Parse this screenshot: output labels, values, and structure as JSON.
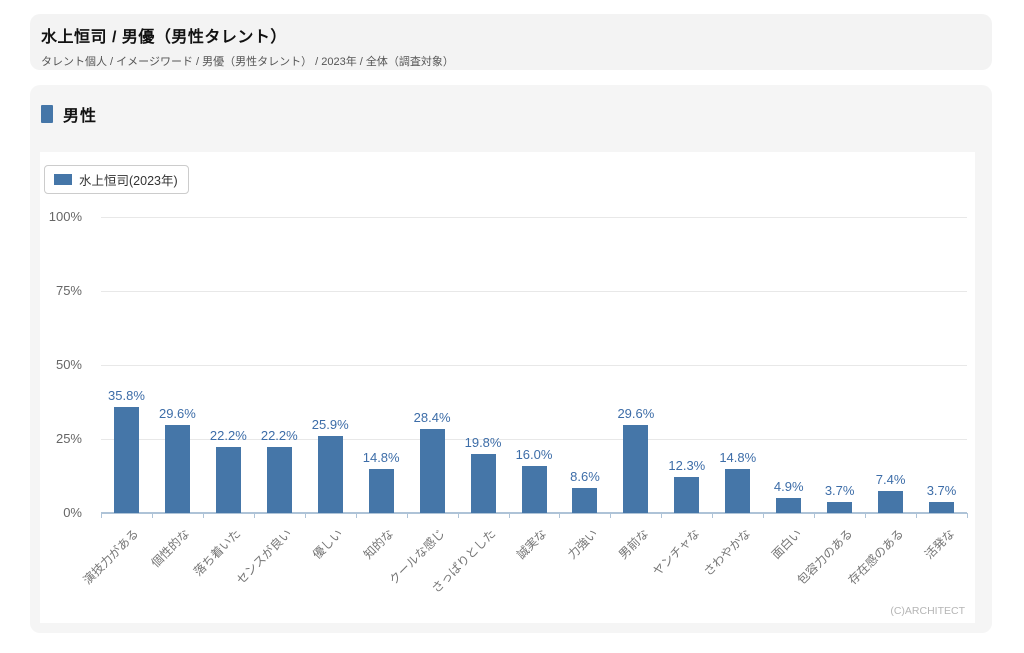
{
  "header": {
    "title": "水上恒司 / 男優（男性タレント）",
    "breadcrumb": "タレント個人 / イメージワード / 男優（男性タレント） / 2023年 / 全体（調査対象）"
  },
  "section": {
    "title": "男性"
  },
  "legend": {
    "label": "水上恒司(2023年)"
  },
  "footer": {
    "copyright": "(C)ARCHITECT"
  },
  "colors": {
    "bar": "#4576a8",
    "value_label": "#3d6da8",
    "axis_line": "#aec3d7",
    "gridline": "#e8e8e8",
    "section_marker": "#4576a8",
    "x_label_text": "#757575",
    "y_label_text": "#666666"
  },
  "chart_data": {
    "type": "bar",
    "title": "男性",
    "categories": [
      "演技力がある",
      "個性的な",
      "落ち着いた",
      "センスが良い",
      "優しい",
      "知的な",
      "クールな感じ",
      "さっぱりとした",
      "誠実な",
      "力強い",
      "男前な",
      "ヤンチャな",
      "さわやかな",
      "面白い",
      "包容力のある",
      "存在感のある",
      "活発な"
    ],
    "series": [
      {
        "name": "水上恒司(2023年)",
        "values": [
          35.8,
          29.6,
          22.2,
          22.2,
          25.9,
          14.8,
          28.4,
          19.8,
          16.0,
          8.6,
          29.6,
          12.3,
          14.8,
          4.9,
          3.7,
          7.4,
          3.7
        ],
        "value_labels": [
          "35.8%",
          "29.6%",
          "22.2%",
          "22.2%",
          "25.9%",
          "14.8%",
          "28.4%",
          "19.8%",
          "16.0%",
          "8.6%",
          "29.6%",
          "12.3%",
          "14.8%",
          "4.9%",
          "3.7%",
          "7.4%",
          "3.7%"
        ]
      }
    ],
    "xlabel": "",
    "ylabel": "",
    "ylim": [
      0,
      100
    ],
    "yticks": [
      {
        "value": 0,
        "label": "0%"
      },
      {
        "value": 25,
        "label": "25%"
      },
      {
        "value": 50,
        "label": "50%"
      },
      {
        "value": 75,
        "label": "75%"
      },
      {
        "value": 100,
        "label": "100%"
      }
    ],
    "grid": true,
    "legend_position": "top-left",
    "value_labels_shown": true
  }
}
